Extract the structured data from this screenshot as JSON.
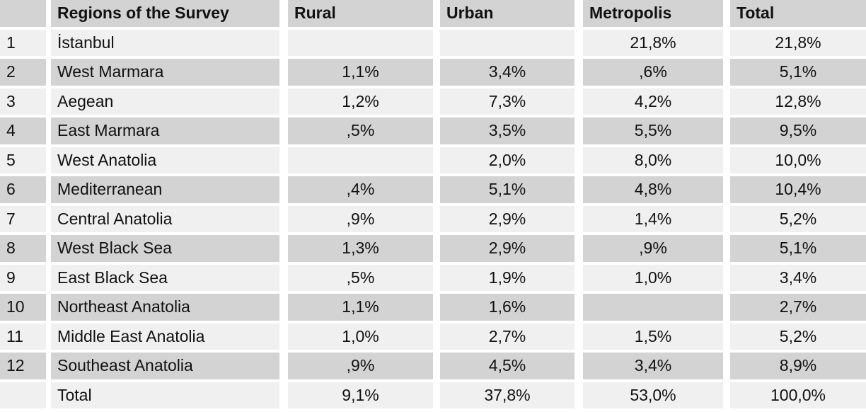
{
  "chart_data": {
    "type": "table",
    "columns": [
      {
        "id": "num",
        "label": ""
      },
      {
        "id": "region",
        "label": "Regions of the Survey"
      },
      {
        "id": "rural",
        "label": "Rural"
      },
      {
        "id": "urban",
        "label": "Urban"
      },
      {
        "id": "metropolis",
        "label": "Metropolis"
      },
      {
        "id": "total",
        "label": "Total"
      }
    ],
    "rows": [
      {
        "num": "1",
        "region": "İstanbul",
        "rural": "",
        "urban": "",
        "metropolis": "21,8%",
        "total": "21,8%"
      },
      {
        "num": "2",
        "region": "West Marmara",
        "rural": "1,1%",
        "urban": "3,4%",
        "metropolis": ",6%",
        "total": "5,1%"
      },
      {
        "num": "3",
        "region": "Aegean",
        "rural": "1,2%",
        "urban": "7,3%",
        "metropolis": "4,2%",
        "total": "12,8%"
      },
      {
        "num": "4",
        "region": "East Marmara",
        "rural": ",5%",
        "urban": "3,5%",
        "metropolis": "5,5%",
        "total": "9,5%"
      },
      {
        "num": "5",
        "region": "West Anatolia",
        "rural": "",
        "urban": "2,0%",
        "metropolis": "8,0%",
        "total": "10,0%"
      },
      {
        "num": "6",
        "region": "Mediterranean",
        "rural": ",4%",
        "urban": "5,1%",
        "metropolis": "4,8%",
        "total": "10,4%"
      },
      {
        "num": "7",
        "region": "Central Anatolia",
        "rural": ",9%",
        "urban": "2,9%",
        "metropolis": "1,4%",
        "total": "5,2%"
      },
      {
        "num": "8",
        "region": "West Black Sea",
        "rural": "1,3%",
        "urban": "2,9%",
        "metropolis": ",9%",
        "total": "5,1%"
      },
      {
        "num": "9",
        "region": "East Black Sea",
        "rural": ",5%",
        "urban": "1,9%",
        "metropolis": "1,0%",
        "total": "3,4%"
      },
      {
        "num": "10",
        "region": "Northeast Anatolia",
        "rural": "1,1%",
        "urban": "1,6%",
        "metropolis": "",
        "total": "2,7%"
      },
      {
        "num": "11",
        "region": "Middle East Anatolia",
        "rural": "1,0%",
        "urban": "2,7%",
        "metropolis": "1,5%",
        "total": "5,2%"
      },
      {
        "num": "12",
        "region": "Southeast Anatolia",
        "rural": ",9%",
        "urban": "4,5%",
        "metropolis": "3,4%",
        "total": "8,9%"
      },
      {
        "num": "",
        "region": "Total",
        "rural": "9,1%",
        "urban": "37,8%",
        "metropolis": "53,0%",
        "total": "100,0%"
      }
    ],
    "colors": {
      "row_dark": "#d3d3d3",
      "row_light": "#f0f0f0",
      "separator": "#ffffff",
      "text": "#111111"
    }
  }
}
